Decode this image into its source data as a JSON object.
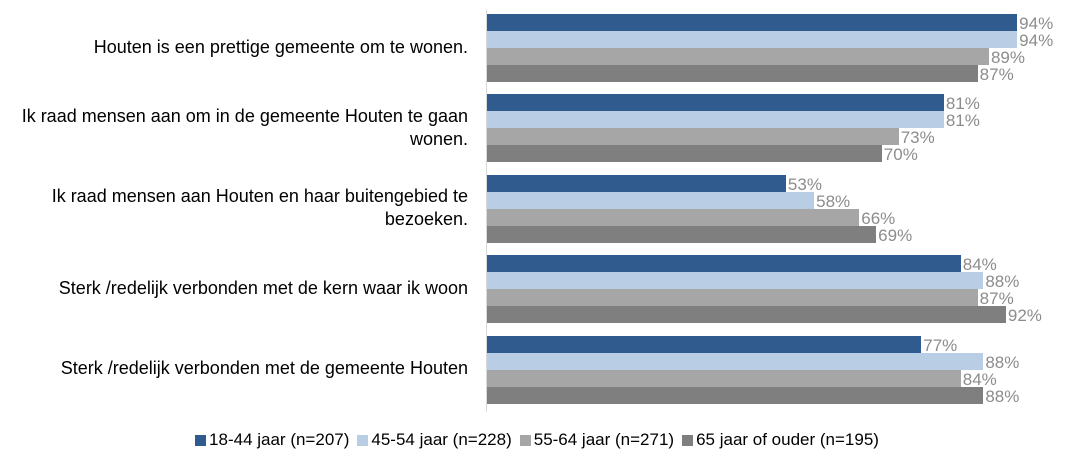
{
  "chart_data": {
    "type": "bar",
    "orientation": "horizontal",
    "categories": [
      "Houten is een prettige gemeente om te wonen.",
      "Ik raad mensen aan om in de gemeente Houten te gaan wonen.",
      "Ik raad mensen aan Houten en haar buitengebied te bezoeken.",
      "Sterk /redelijk verbonden met de kern waar ik woon",
      "Sterk /redelijk verbonden met de gemeente Houten"
    ],
    "series": [
      {
        "name": "18-44 jaar (n=207)",
        "color": "#2f5b8f",
        "values": [
          94,
          81,
          53,
          84,
          77
        ],
        "value_labels": [
          "94%",
          "81%",
          "53%",
          "84%",
          "77%"
        ]
      },
      {
        "name": "45-54 jaar (n=228)",
        "color": "#b9cde5",
        "values": [
          94,
          81,
          58,
          88,
          88
        ],
        "value_labels": [
          "94%",
          "81%",
          "58%",
          "88%",
          "88%"
        ]
      },
      {
        "name": "55-64 jaar (n=271)",
        "color": "#a6a6a6",
        "values": [
          89,
          73,
          66,
          87,
          84
        ],
        "value_labels": [
          "89%",
          "73%",
          "66%",
          "87%",
          "84%"
        ]
      },
      {
        "name": "65 jaar of ouder (n=195)",
        "color": "#7f7f7f",
        "values": [
          87,
          70,
          69,
          92,
          88
        ],
        "value_labels": [
          "87%",
          "70%",
          "69%",
          "92%",
          "88%"
        ]
      }
    ],
    "xlim": [
      0,
      100
    ],
    "legend": "bottom"
  }
}
